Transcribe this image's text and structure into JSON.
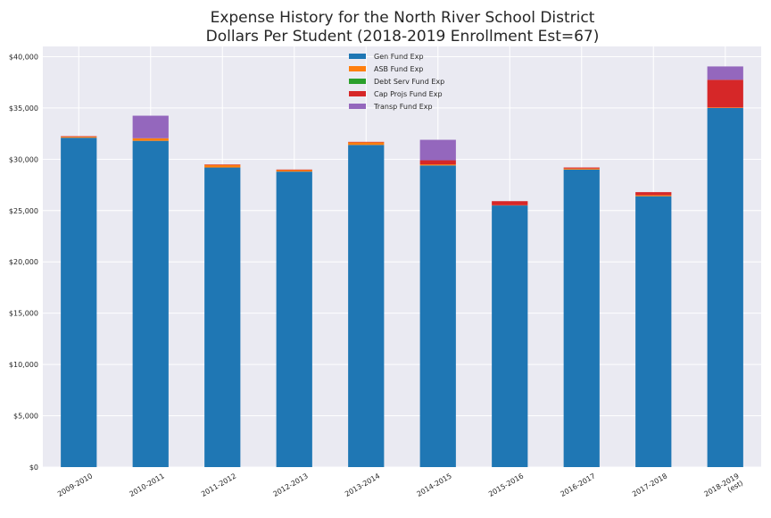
{
  "chart_data": {
    "type": "bar",
    "stacked": true,
    "title_lines": [
      "Expense History for the North River School District",
      "Dollars Per Student (2018-2019 Enrollment Est=67)"
    ],
    "xlabel": "",
    "ylabel": "",
    "ylim": [
      0,
      41000
    ],
    "y_ticks": [
      0,
      5000,
      10000,
      15000,
      20000,
      25000,
      30000,
      35000,
      40000
    ],
    "y_tick_labels": [
      "$0",
      "$5,000",
      "$10,000",
      "$15,000",
      "$20,000",
      "$25,000",
      "$30,000",
      "$35,000",
      "$40,000"
    ],
    "grid": true,
    "legend_position": "top-center",
    "categories": [
      [
        "2009-2010"
      ],
      [
        "2010-2011"
      ],
      [
        "2011-2012"
      ],
      [
        "2012-2013"
      ],
      [
        "2013-2014"
      ],
      [
        "2014-2015"
      ],
      [
        "2015-2016"
      ],
      [
        "2016-2017"
      ],
      [
        "2017-2018"
      ],
      [
        "2018-2019",
        "(est)"
      ]
    ],
    "series": [
      {
        "name": "Gen Fund Exp",
        "color": "#1f77b4",
        "values": [
          32100,
          31800,
          29200,
          28800,
          31400,
          29400,
          25500,
          29000,
          26400,
          35000
        ]
      },
      {
        "name": "ASB Fund Exp",
        "color": "#ff7f0e",
        "values": [
          100,
          250,
          250,
          150,
          250,
          100,
          20,
          100,
          100,
          50
        ]
      },
      {
        "name": "Debt Serv Fund Exp",
        "color": "#2ca02c",
        "values": [
          0,
          0,
          0,
          0,
          0,
          0,
          0,
          0,
          0,
          0
        ]
      },
      {
        "name": "Cap Projs Fund Exp",
        "color": "#d62728",
        "values": [
          50,
          0,
          50,
          50,
          50,
          400,
          400,
          100,
          300,
          2700
        ]
      },
      {
        "name": "Transp Fund Exp",
        "color": "#9467bd",
        "values": [
          0,
          2200,
          0,
          0,
          0,
          2000,
          0,
          0,
          0,
          1300
        ]
      }
    ]
  }
}
